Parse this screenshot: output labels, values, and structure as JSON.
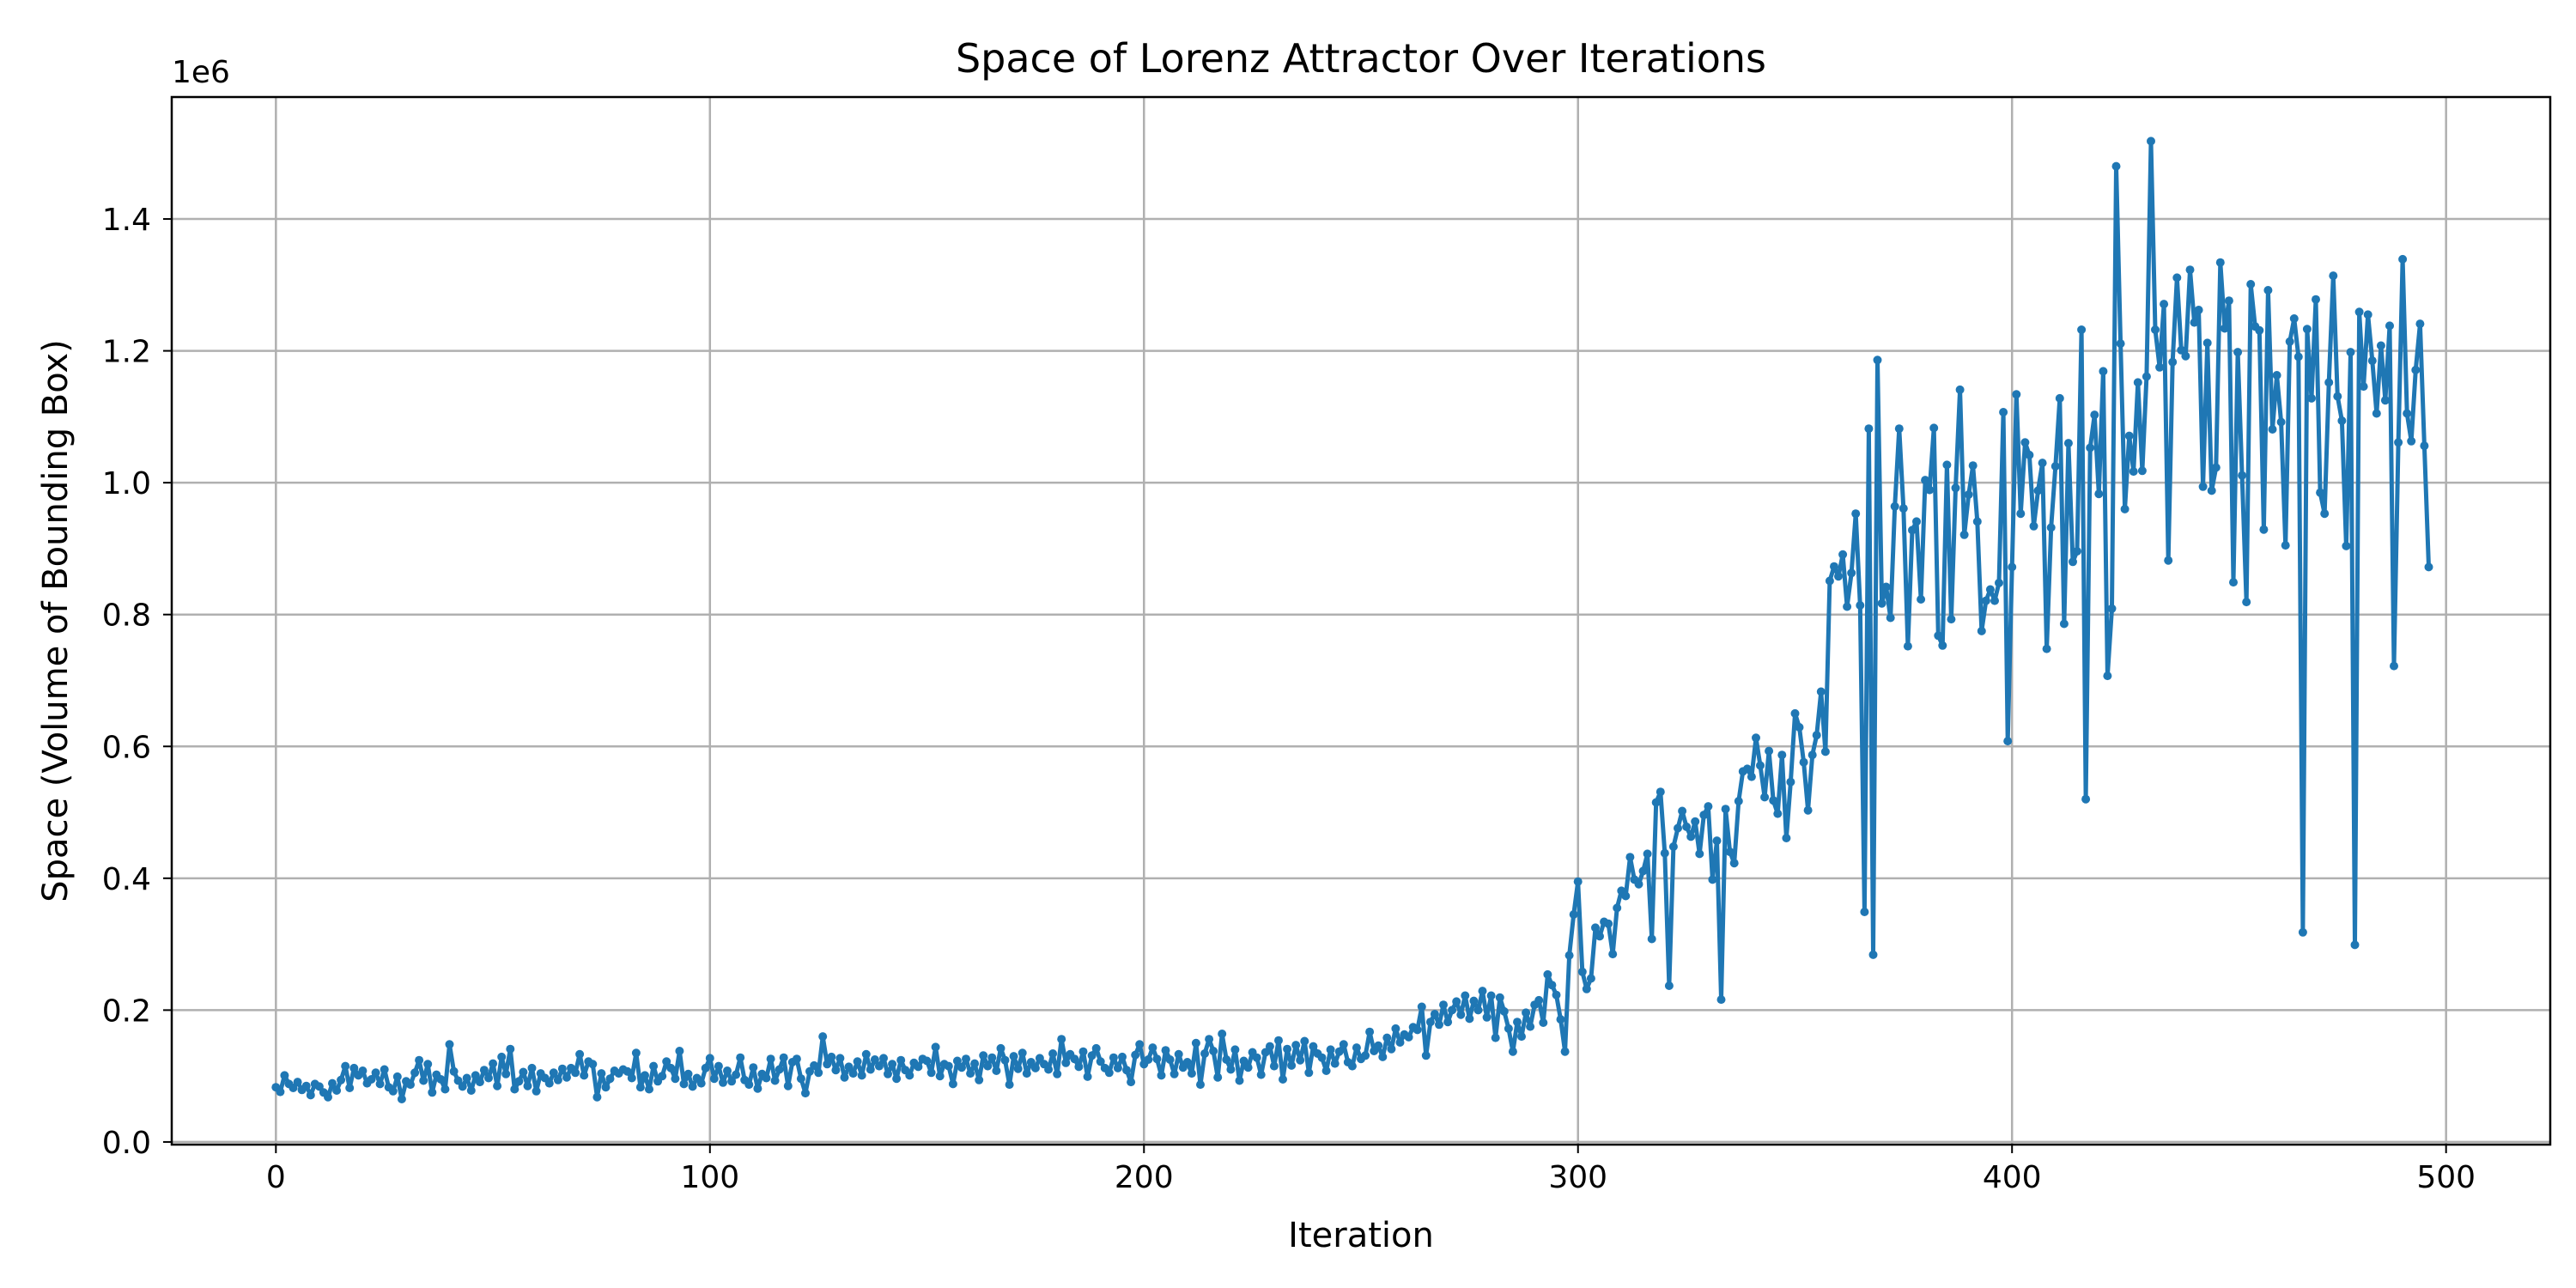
{
  "chart_data": {
    "type": "line",
    "title": "Space of Lorenz Attractor Over Iterations",
    "xlabel": "Iteration",
    "ylabel": "Space (Volume of Bounding Box)",
    "y_offset_label": "1e6",
    "xlim": [
      -24,
      524
    ],
    "ylim": [
      -0.004,
      1.585
    ],
    "y_scale_note": "values in units of 1e6",
    "xticks": [
      0,
      100,
      200,
      300,
      400,
      500
    ],
    "xtick_labels": [
      "0",
      "100",
      "200",
      "300",
      "400",
      "500"
    ],
    "yticks": [
      0.0,
      0.2,
      0.4,
      0.6,
      0.8,
      1.0,
      1.2,
      1.4
    ],
    "ytick_labels": [
      "0.0",
      "0.2",
      "0.4",
      "0.6",
      "0.8",
      "1.0",
      "1.2",
      "1.4"
    ],
    "grid": true,
    "marker": "circle",
    "series": [
      {
        "color": "#1f77b4",
        "x_start": 0,
        "x_step": 1,
        "values": [
          0.083,
          0.076,
          0.101,
          0.088,
          0.082,
          0.091,
          0.079,
          0.085,
          0.071,
          0.088,
          0.084,
          0.075,
          0.068,
          0.089,
          0.078,
          0.094,
          0.115,
          0.082,
          0.112,
          0.101,
          0.108,
          0.089,
          0.095,
          0.105,
          0.088,
          0.11,
          0.083,
          0.077,
          0.099,
          0.065,
          0.092,
          0.087,
          0.105,
          0.124,
          0.093,
          0.118,
          0.075,
          0.102,
          0.095,
          0.08,
          0.148,
          0.107,
          0.093,
          0.084,
          0.097,
          0.078,
          0.101,
          0.091,
          0.109,
          0.097,
          0.119,
          0.085,
          0.129,
          0.103,
          0.141,
          0.08,
          0.092,
          0.106,
          0.085,
          0.112,
          0.077,
          0.104,
          0.097,
          0.089,
          0.105,
          0.094,
          0.111,
          0.098,
          0.112,
          0.105,
          0.133,
          0.101,
          0.122,
          0.118,
          0.068,
          0.104,
          0.083,
          0.096,
          0.108,
          0.104,
          0.11,
          0.107,
          0.097,
          0.135,
          0.083,
          0.101,
          0.08,
          0.115,
          0.092,
          0.1,
          0.122,
          0.112,
          0.096,
          0.138,
          0.088,
          0.103,
          0.084,
          0.097,
          0.089,
          0.112,
          0.127,
          0.096,
          0.115,
          0.09,
          0.108,
          0.092,
          0.102,
          0.128,
          0.094,
          0.087,
          0.113,
          0.081,
          0.103,
          0.097,
          0.126,
          0.093,
          0.11,
          0.128,
          0.085,
          0.121,
          0.126,
          0.096,
          0.074,
          0.107,
          0.116,
          0.105,
          0.16,
          0.118,
          0.129,
          0.109,
          0.127,
          0.098,
          0.114,
          0.104,
          0.122,
          0.101,
          0.133,
          0.11,
          0.125,
          0.115,
          0.127,
          0.103,
          0.118,
          0.096,
          0.124,
          0.109,
          0.101,
          0.12,
          0.114,
          0.126,
          0.123,
          0.105,
          0.144,
          0.1,
          0.118,
          0.115,
          0.088,
          0.123,
          0.113,
          0.126,
          0.104,
          0.119,
          0.094,
          0.131,
          0.115,
          0.128,
          0.108,
          0.142,
          0.124,
          0.087,
          0.13,
          0.111,
          0.135,
          0.104,
          0.121,
          0.112,
          0.127,
          0.118,
          0.11,
          0.134,
          0.103,
          0.156,
          0.12,
          0.133,
          0.126,
          0.114,
          0.137,
          0.099,
          0.131,
          0.142,
          0.122,
          0.112,
          0.105,
          0.128,
          0.112,
          0.129,
          0.109,
          0.091,
          0.132,
          0.148,
          0.118,
          0.125,
          0.143,
          0.126,
          0.101,
          0.139,
          0.125,
          0.103,
          0.133,
          0.113,
          0.121,
          0.104,
          0.15,
          0.087,
          0.134,
          0.156,
          0.138,
          0.098,
          0.164,
          0.125,
          0.11,
          0.14,
          0.093,
          0.123,
          0.113,
          0.136,
          0.128,
          0.102,
          0.136,
          0.145,
          0.115,
          0.154,
          0.095,
          0.141,
          0.116,
          0.147,
          0.124,
          0.153,
          0.105,
          0.145,
          0.134,
          0.128,
          0.108,
          0.14,
          0.119,
          0.137,
          0.148,
          0.121,
          0.115,
          0.143,
          0.126,
          0.131,
          0.167,
          0.138,
          0.146,
          0.129,
          0.158,
          0.141,
          0.172,
          0.151,
          0.163,
          0.159,
          0.174,
          0.17,
          0.205,
          0.131,
          0.182,
          0.194,
          0.178,
          0.208,
          0.182,
          0.2,
          0.213,
          0.193,
          0.222,
          0.187,
          0.214,
          0.2,
          0.229,
          0.189,
          0.222,
          0.158,
          0.219,
          0.198,
          0.172,
          0.137,
          0.182,
          0.16,
          0.196,
          0.175,
          0.208,
          0.215,
          0.181,
          0.254,
          0.238,
          0.223,
          0.186,
          0.137,
          0.283,
          0.345,
          0.395,
          0.258,
          0.232,
          0.248,
          0.325,
          0.312,
          0.334,
          0.331,
          0.285,
          0.355,
          0.381,
          0.373,
          0.432,
          0.398,
          0.391,
          0.411,
          0.437,
          0.308,
          0.515,
          0.531,
          0.438,
          0.237,
          0.448,
          0.476,
          0.502,
          0.478,
          0.463,
          0.486,
          0.437,
          0.496,
          0.509,
          0.398,
          0.457,
          0.216,
          0.505,
          0.44,
          0.423,
          0.517,
          0.562,
          0.566,
          0.554,
          0.613,
          0.571,
          0.523,
          0.593,
          0.518,
          0.498,
          0.587,
          0.461,
          0.546,
          0.65,
          0.629,
          0.576,
          0.503,
          0.587,
          0.617,
          0.683,
          0.592,
          0.851,
          0.873,
          0.858,
          0.891,
          0.812,
          0.863,
          0.953,
          0.814,
          0.349,
          1.082,
          0.284,
          1.186,
          0.817,
          0.842,
          0.795,
          0.964,
          1.082,
          0.961,
          0.752,
          0.928,
          0.941,
          0.823,
          1.004,
          0.989,
          1.083,
          0.768,
          0.753,
          1.027,
          0.793,
          0.992,
          1.141,
          0.921,
          0.982,
          1.026,
          0.941,
          0.775,
          0.821,
          0.838,
          0.821,
          0.848,
          1.107,
          0.608,
          0.872,
          1.134,
          0.953,
          1.061,
          1.042,
          0.934,
          0.988,
          1.03,
          0.748,
          0.932,
          1.025,
          1.128,
          0.786,
          1.06,
          0.88,
          0.896,
          1.232,
          0.52,
          1.053,
          1.103,
          0.983,
          1.169,
          0.707,
          0.809,
          1.48,
          1.211,
          0.96,
          1.071,
          1.017,
          1.152,
          1.018,
          1.161,
          1.518,
          1.232,
          1.175,
          1.271,
          0.882,
          1.183,
          1.311,
          1.201,
          1.192,
          1.323,
          1.243,
          1.262,
          0.994,
          1.212,
          0.988,
          1.023,
          1.334,
          1.234,
          1.276,
          0.849,
          1.198,
          1.011,
          0.819,
          1.301,
          1.237,
          1.231,
          0.929,
          1.292,
          1.081,
          1.163,
          1.092,
          0.905,
          1.214,
          1.249,
          1.191,
          0.318,
          1.233,
          1.128,
          1.278,
          0.985,
          0.953,
          1.152,
          1.314,
          1.131,
          1.094,
          0.904,
          1.198,
          0.299,
          1.259,
          1.146,
          1.255,
          1.185,
          1.105,
          1.208,
          1.125,
          1.238,
          0.722,
          1.061,
          1.339,
          1.105,
          1.063,
          1.171,
          1.241,
          1.056,
          0.872
        ]
      }
    ]
  }
}
